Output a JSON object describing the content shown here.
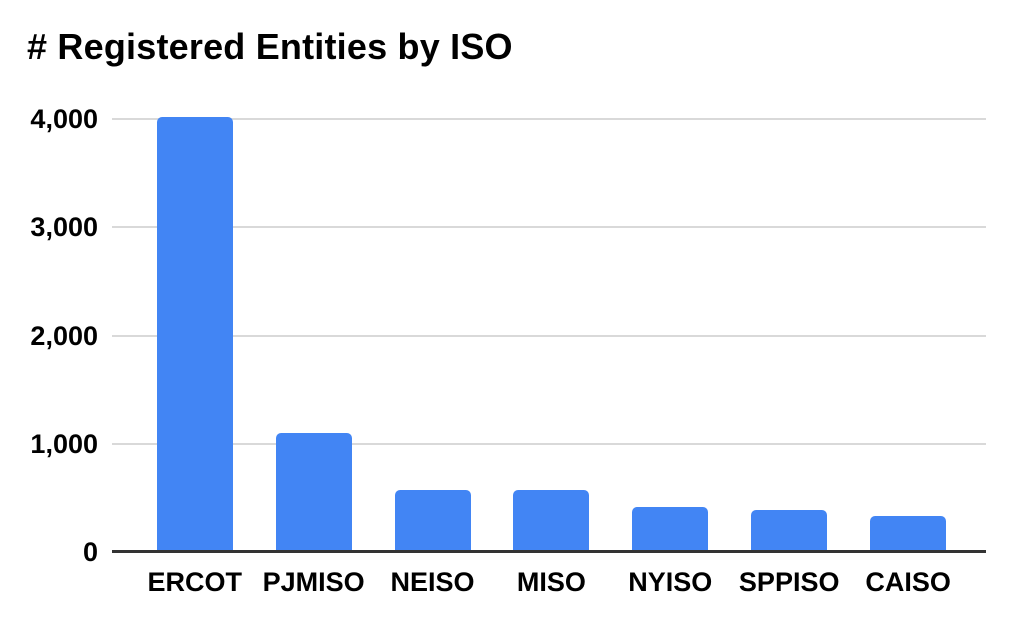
{
  "chart_data": {
    "type": "bar",
    "title": "# Registered Entities by ISO",
    "categories": [
      "ERCOT",
      "PJMISO",
      "NEISO",
      "MISO",
      "NYISO",
      "SPPISO",
      "CAISO"
    ],
    "values": [
      4020,
      1100,
      570,
      570,
      415,
      385,
      335
    ],
    "xlabel": "",
    "ylabel": "",
    "ylim": [
      0,
      4000
    ],
    "yticks": [
      0,
      1000,
      2000,
      3000,
      4000
    ],
    "ytick_labels": [
      "0",
      "1,000",
      "2,000",
      "3,000",
      "4,000"
    ],
    "grid": "horizontal-only",
    "legend": "none",
    "colors": {
      "bar": "#4285f4",
      "gridline": "#d9d9d9",
      "baseline": "#333333",
      "text": "#000000",
      "background": "#ffffff"
    }
  }
}
